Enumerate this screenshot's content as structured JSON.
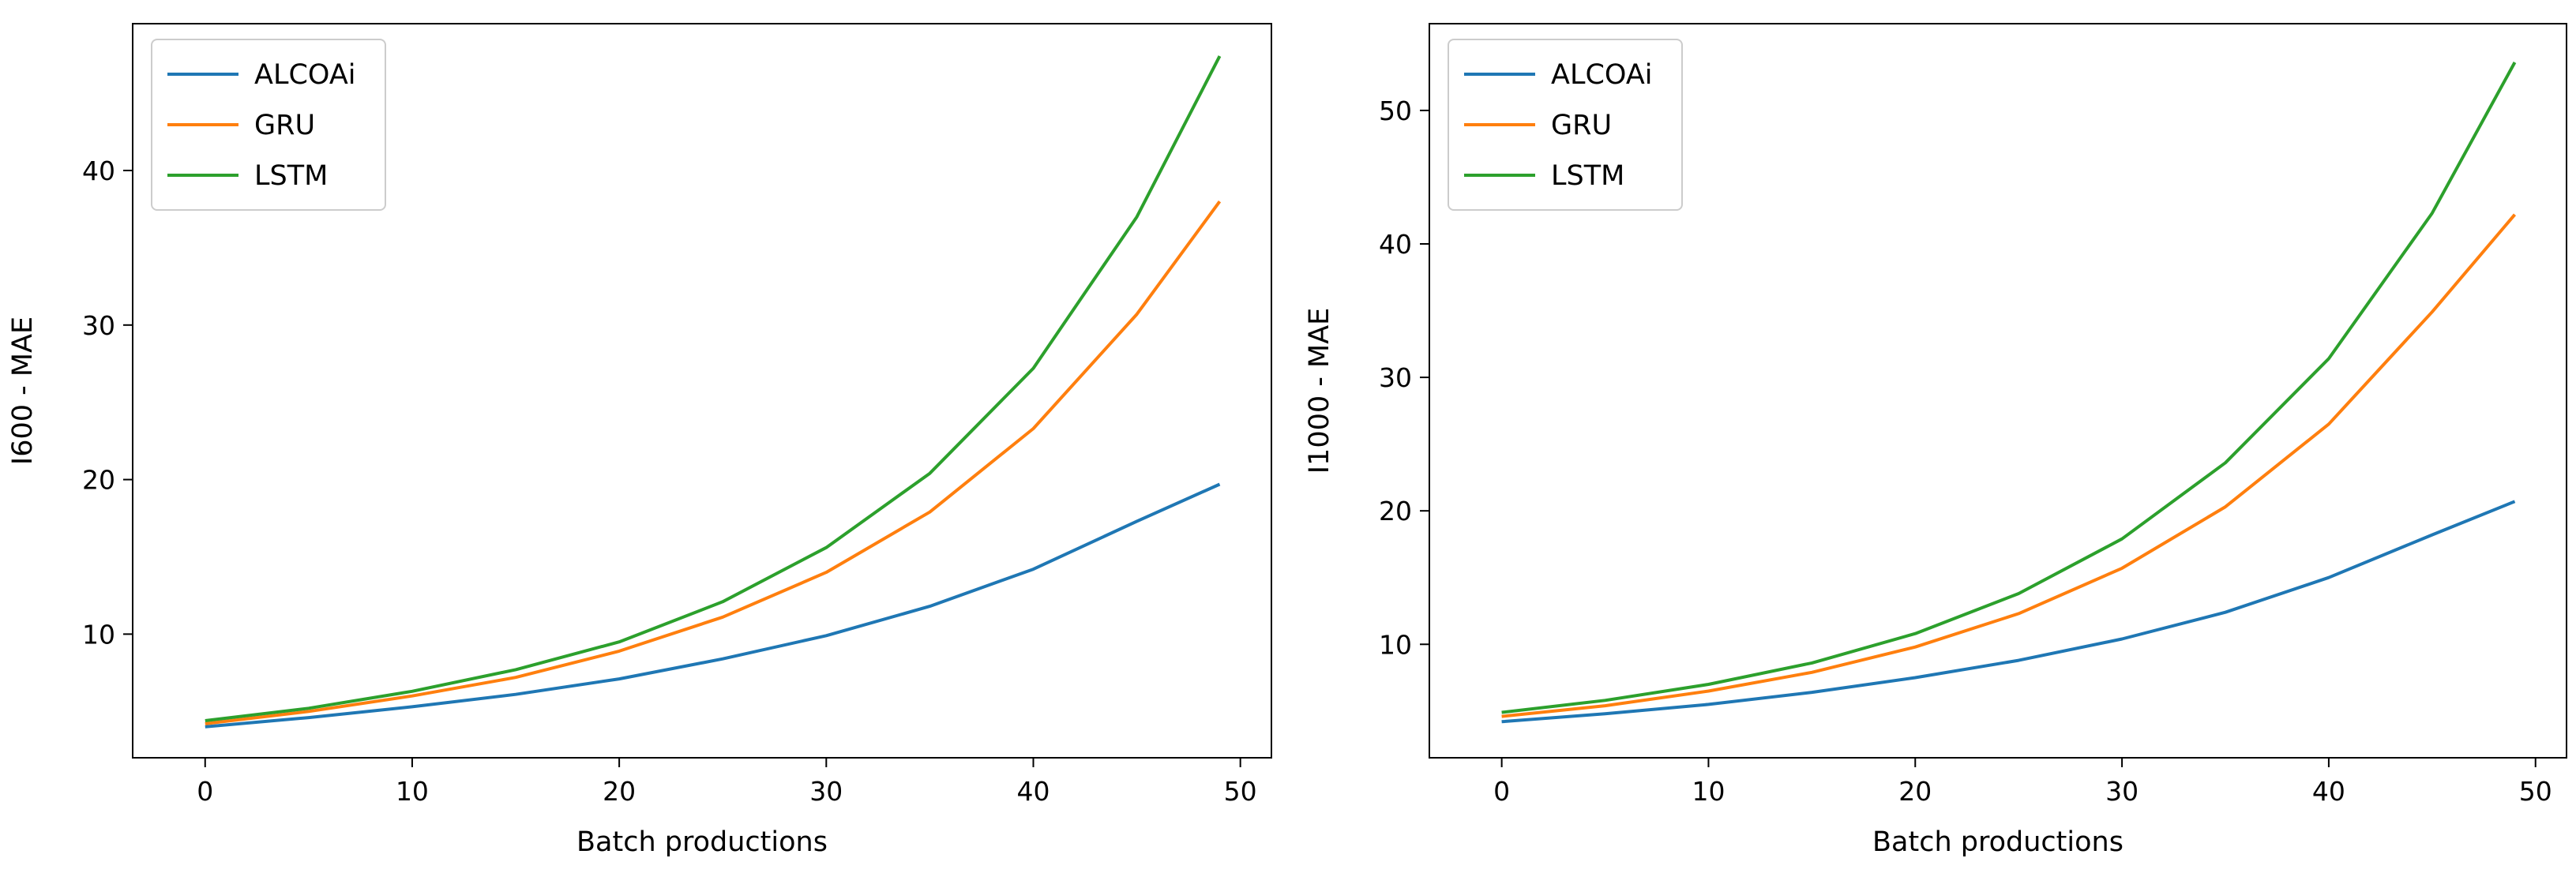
{
  "chart_data": [
    {
      "type": "line",
      "title": "",
      "xlabel": "Batch productions",
      "ylabel": "I600 - MAE",
      "xlim": [
        -3.5,
        51.5
      ],
      "ylim": [
        2.0,
        49.5
      ],
      "xticks": [
        0,
        10,
        20,
        30,
        40,
        50
      ],
      "yticks": [
        10,
        20,
        30,
        40
      ],
      "legend": "top-left",
      "series": [
        {
          "name": "ALCOAi",
          "color": "#1f77b4",
          "x": [
            0,
            5,
            10,
            15,
            20,
            25,
            30,
            35,
            40,
            45,
            49
          ],
          "y": [
            4.0,
            4.6,
            5.3,
            6.1,
            7.1,
            8.4,
            9.9,
            11.8,
            14.2,
            17.3,
            19.7
          ]
        },
        {
          "name": "GRU",
          "color": "#ff7f0e",
          "x": [
            0,
            5,
            10,
            15,
            20,
            25,
            30,
            35,
            40,
            45,
            49
          ],
          "y": [
            4.2,
            5.0,
            6.0,
            7.2,
            8.9,
            11.1,
            14.0,
            17.9,
            23.3,
            30.7,
            38.0
          ]
        },
        {
          "name": "LSTM",
          "color": "#2ca02c",
          "x": [
            0,
            5,
            10,
            15,
            20,
            25,
            30,
            35,
            40,
            45,
            49
          ],
          "y": [
            4.4,
            5.2,
            6.3,
            7.7,
            9.5,
            12.1,
            15.6,
            20.4,
            27.2,
            37.0,
            47.4
          ]
        }
      ]
    },
    {
      "type": "line",
      "title": "",
      "xlabel": "Batch productions",
      "ylabel": "I1000 - MAE",
      "xlim": [
        -3.5,
        51.5
      ],
      "ylim": [
        1.5,
        56.5
      ],
      "xticks": [
        0,
        10,
        20,
        30,
        40,
        50
      ],
      "yticks": [
        10,
        20,
        30,
        40,
        50
      ],
      "legend": "top-left",
      "series": [
        {
          "name": "ALCOAi",
          "color": "#1f77b4",
          "x": [
            0,
            5,
            10,
            15,
            20,
            25,
            30,
            35,
            40,
            45,
            49
          ],
          "y": [
            4.2,
            4.8,
            5.5,
            6.4,
            7.5,
            8.8,
            10.4,
            12.4,
            15.0,
            18.2,
            20.7
          ]
        },
        {
          "name": "GRU",
          "color": "#ff7f0e",
          "x": [
            0,
            5,
            10,
            15,
            20,
            25,
            30,
            35,
            40,
            45,
            49
          ],
          "y": [
            4.6,
            5.4,
            6.5,
            7.9,
            9.8,
            12.3,
            15.7,
            20.3,
            26.5,
            34.9,
            42.2
          ]
        },
        {
          "name": "LSTM",
          "color": "#2ca02c",
          "x": [
            0,
            5,
            10,
            15,
            20,
            25,
            30,
            35,
            40,
            45,
            49
          ],
          "y": [
            4.9,
            5.8,
            7.0,
            8.6,
            10.8,
            13.8,
            17.9,
            23.6,
            31.4,
            42.3,
            53.6
          ]
        }
      ]
    }
  ]
}
